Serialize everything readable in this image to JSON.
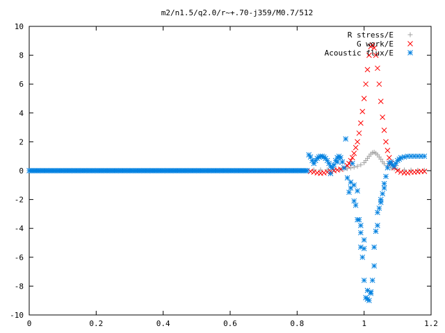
{
  "chart_data": {
    "type": "scatter",
    "title": "m2/n1.5/q2.0/r~+.70-j359/M0.7/512",
    "xlabel": "",
    "ylabel": "",
    "xlim": [
      0,
      1.2
    ],
    "ylim": [
      -10,
      10
    ],
    "grid": false,
    "legend_position": "top-right",
    "x_ticks": [
      0,
      0.2,
      0.4,
      0.6,
      0.8,
      1,
      1.2
    ],
    "x_tick_labels": [
      "0",
      "0.2",
      "0.4",
      "0.6",
      "0.8",
      "1",
      "1.2"
    ],
    "y_ticks": [
      -10,
      -8,
      -6,
      -4,
      -2,
      0,
      2,
      4,
      6,
      8,
      10
    ],
    "y_tick_labels": [
      "-10",
      "-8",
      "-6",
      "-4",
      "-2",
      "0",
      "2",
      "4",
      "6",
      "8",
      "10"
    ],
    "series": [
      {
        "name": "R stress/E",
        "marker": "plus",
        "color": "#a0a0a0",
        "points": [
          [
            0.85,
            0.05
          ],
          [
            0.87,
            0.05
          ],
          [
            0.89,
            0.06
          ],
          [
            0.91,
            0.07
          ],
          [
            0.93,
            0.09
          ],
          [
            0.94,
            0.12
          ],
          [
            0.95,
            0.15
          ],
          [
            0.96,
            0.19
          ],
          [
            0.97,
            0.24
          ],
          [
            0.98,
            0.3
          ],
          [
            0.99,
            0.4
          ],
          [
            1.0,
            0.55
          ],
          [
            1.005,
            0.7
          ],
          [
            1.01,
            0.85
          ],
          [
            1.015,
            1.0
          ],
          [
            1.02,
            1.15
          ],
          [
            1.025,
            1.25
          ],
          [
            1.03,
            1.28
          ],
          [
            1.035,
            1.2
          ],
          [
            1.04,
            1.1
          ],
          [
            1.045,
            0.95
          ],
          [
            1.05,
            0.8
          ],
          [
            1.055,
            0.62
          ],
          [
            1.06,
            0.48
          ],
          [
            1.07,
            0.32
          ],
          [
            1.08,
            0.2
          ],
          [
            1.09,
            0.12
          ],
          [
            1.1,
            0.08
          ],
          [
            1.12,
            0.05
          ],
          [
            1.14,
            0.04
          ],
          [
            1.16,
            0.03
          ],
          [
            1.18,
            0.03
          ]
        ]
      },
      {
        "name": "G work/E",
        "marker": "cross",
        "color": "#ff0000",
        "points": [
          [
            0.84,
            -0.05
          ],
          [
            0.85,
            -0.1
          ],
          [
            0.86,
            -0.15
          ],
          [
            0.87,
            -0.18
          ],
          [
            0.88,
            -0.15
          ],
          [
            0.89,
            -0.1
          ],
          [
            0.9,
            -0.05
          ],
          [
            0.91,
            0.0
          ],
          [
            0.92,
            0.05
          ],
          [
            0.93,
            0.1
          ],
          [
            0.94,
            0.2
          ],
          [
            0.95,
            0.35
          ],
          [
            0.955,
            0.5
          ],
          [
            0.96,
            0.7
          ],
          [
            0.965,
            0.9
          ],
          [
            0.97,
            1.2
          ],
          [
            0.975,
            1.6
          ],
          [
            0.98,
            2.0
          ],
          [
            0.985,
            2.6
          ],
          [
            0.99,
            3.3
          ],
          [
            0.995,
            4.1
          ],
          [
            1.0,
            5.0
          ],
          [
            1.005,
            6.0
          ],
          [
            1.01,
            7.0
          ],
          [
            1.015,
            8.0
          ],
          [
            1.02,
            8.6
          ],
          [
            1.025,
            8.7
          ],
          [
            1.03,
            8.5
          ],
          [
            1.035,
            8.0
          ],
          [
            1.04,
            7.1
          ],
          [
            1.045,
            6.0
          ],
          [
            1.05,
            4.8
          ],
          [
            1.055,
            3.7
          ],
          [
            1.06,
            2.8
          ],
          [
            1.065,
            2.0
          ],
          [
            1.07,
            1.4
          ],
          [
            1.075,
            0.9
          ],
          [
            1.08,
            0.5
          ],
          [
            1.09,
            0.2
          ],
          [
            1.1,
            0.0
          ],
          [
            1.11,
            -0.1
          ],
          [
            1.12,
            -0.15
          ],
          [
            1.13,
            -0.15
          ],
          [
            1.14,
            -0.1
          ],
          [
            1.15,
            -0.1
          ],
          [
            1.16,
            -0.08
          ],
          [
            1.17,
            -0.05
          ],
          [
            1.18,
            -0.05
          ]
        ]
      },
      {
        "name": "Acoustic flux/E",
        "marker": "star",
        "color": "#0080e0",
        "points": [
          [
            0.835,
            1.1
          ],
          [
            0.84,
            0.95
          ],
          [
            0.845,
            0.7
          ],
          [
            0.85,
            0.5
          ],
          [
            0.855,
            0.7
          ],
          [
            0.86,
            0.85
          ],
          [
            0.865,
            0.95
          ],
          [
            0.87,
            1.0
          ],
          [
            0.875,
            1.0
          ],
          [
            0.88,
            0.95
          ],
          [
            0.885,
            0.85
          ],
          [
            0.89,
            0.7
          ],
          [
            0.895,
            0.5
          ],
          [
            0.9,
            0.3
          ],
          [
            0.905,
            0.2
          ],
          [
            0.91,
            0.4
          ],
          [
            0.915,
            0.7
          ],
          [
            0.92,
            0.9
          ],
          [
            0.925,
            1.0
          ],
          [
            0.93,
            0.9
          ],
          [
            0.935,
            0.6
          ],
          [
            0.94,
            0.2
          ],
          [
            0.945,
            2.2
          ],
          [
            0.95,
            -0.5
          ],
          [
            0.955,
            -1.5
          ],
          [
            0.96,
            -0.8
          ],
          [
            0.965,
            0.5
          ],
          [
            0.97,
            -1.0
          ],
          [
            0.975,
            -2.4
          ],
          [
            0.98,
            -1.4
          ],
          [
            0.985,
            -3.4
          ],
          [
            0.99,
            -5.3
          ],
          [
            0.995,
            -6.0
          ],
          [
            1.0,
            -7.6
          ],
          [
            1.005,
            -8.8
          ],
          [
            1.01,
            -8.9
          ],
          [
            1.015,
            -9.0
          ],
          [
            1.02,
            -8.4
          ],
          [
            1.025,
            -7.6
          ],
          [
            1.03,
            -6.6
          ],
          [
            1.035,
            -4.2
          ],
          [
            1.04,
            -3.8
          ],
          [
            1.045,
            -2.6
          ],
          [
            1.05,
            -2.2
          ],
          [
            1.055,
            -1.6
          ],
          [
            1.06,
            -0.9
          ],
          [
            1.065,
            -0.4
          ],
          [
            1.07,
            0.2
          ],
          [
            1.075,
            0.5
          ],
          [
            1.08,
            0.6
          ],
          [
            1.085,
            0.4
          ],
          [
            1.09,
            0.3
          ],
          [
            1.095,
            0.5
          ],
          [
            1.1,
            0.7
          ],
          [
            1.105,
            0.8
          ],
          [
            1.11,
            0.9
          ],
          [
            1.12,
            0.95
          ],
          [
            1.13,
            1.0
          ],
          [
            1.14,
            1.0
          ],
          [
            1.15,
            1.0
          ],
          [
            1.16,
            1.0
          ],
          [
            1.17,
            1.0
          ],
          [
            1.18,
            1.0
          ],
          [
            0.9,
            -0.2
          ],
          [
            0.92,
            0.6
          ],
          [
            0.96,
            -1.2
          ],
          [
            0.98,
            -3.4
          ],
          [
            0.99,
            -4.3
          ],
          [
            1.0,
            -5.4
          ],
          [
            1.01,
            -8.3
          ],
          [
            1.02,
            -8.5
          ],
          [
            1.03,
            -5.3
          ],
          [
            1.04,
            -2.9
          ],
          [
            1.05,
            -2.0
          ],
          [
            1.06,
            -1.2
          ],
          [
            0.97,
            -2.1
          ],
          [
            0.99,
            -3.8
          ],
          [
            1.0,
            -4.8
          ]
        ],
        "baseline_range": [
          0,
          0.83
        ],
        "baseline_value": 0
      }
    ]
  }
}
